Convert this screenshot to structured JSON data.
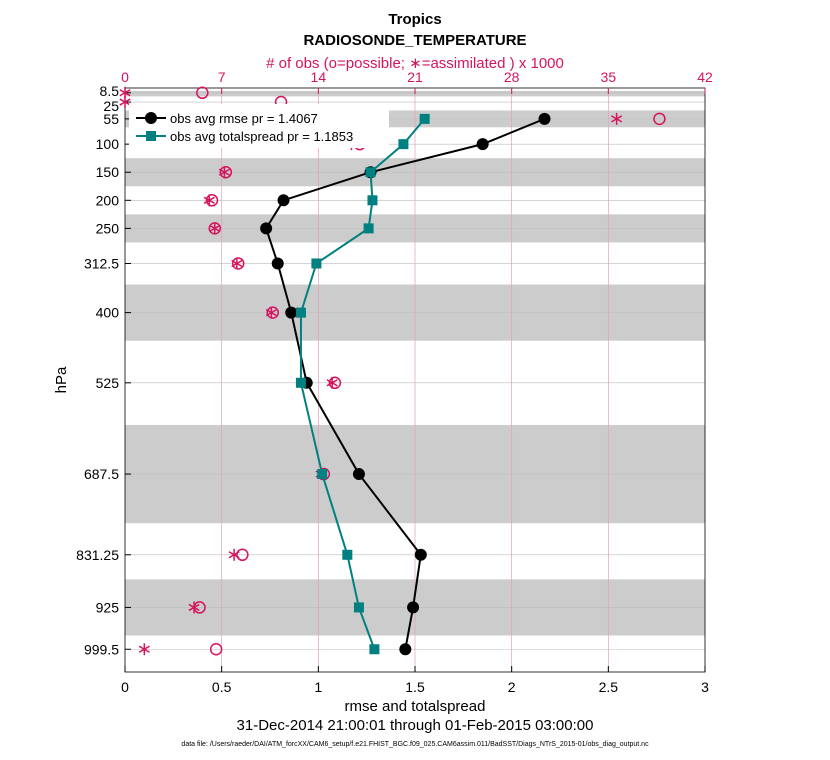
{
  "chart_data": {
    "type": "line",
    "title": "Tropics",
    "subtitle": "RADIOSONDE_TEMPERATURE",
    "top_axis_label": "# of obs (o=possible; ∗=assimilated ) x 1000",
    "xlabel": "rmse and totalspread",
    "ylabel": "hPa",
    "date_range": "31-Dec-2014 21:00:01 through 01-Feb-2015 03:00:00",
    "footnote": "data file: /Users/raeder/DAI/ATM_forcXX/CAM6_setup/f.e21.FHIST_BGC.f09_025.CAM6assim.011/BadSST/Diags_NTrS_2015-01/obs_diag_output.nc",
    "xlim": [
      0,
      3
    ],
    "x_ticks": [
      "0",
      "0.5",
      "1",
      "1.5",
      "2",
      "2.5",
      "3"
    ],
    "x_tick_values": [
      0,
      0.5,
      1,
      1.5,
      2,
      2.5,
      3
    ],
    "top_xlim": [
      0,
      42
    ],
    "top_ticks": [
      "0",
      "7",
      "14",
      "21",
      "28",
      "35",
      "42"
    ],
    "top_tick_values": [
      0,
      7,
      14,
      21,
      28,
      35,
      42
    ],
    "levels": [
      8.5,
      25,
      55,
      100,
      150,
      200,
      250,
      312.5,
      400,
      525,
      687.5,
      831.25,
      925,
      999.5
    ],
    "level_labels": [
      "8.5",
      "25",
      "55",
      "100",
      "150",
      "200",
      "250",
      "312.5",
      "400",
      "525",
      "687.5",
      "831.25",
      "925",
      "999.5"
    ],
    "shaded_bands_hPa": [
      [
        5,
        15
      ],
      [
        40,
        70
      ],
      [
        125,
        175
      ],
      [
        225,
        275
      ],
      [
        350,
        450
      ],
      [
        600,
        775
      ],
      [
        875,
        975
      ]
    ],
    "series": [
      {
        "name": "obs avg rmse pr = 1.4067",
        "color": "#000000",
        "marker": "circle",
        "levels": [
          55,
          100,
          150,
          200,
          250,
          312.5,
          400,
          525,
          687.5,
          831.25,
          925,
          999.5
        ],
        "values": [
          2.17,
          1.85,
          1.27,
          0.82,
          0.73,
          0.79,
          0.86,
          0.94,
          1.21,
          1.53,
          1.49,
          1.45
        ]
      },
      {
        "name": "obs avg totalspread pr = 1.1853",
        "color": "#008080",
        "marker": "square",
        "levels": [
          55,
          100,
          150,
          200,
          250,
          312.5,
          400,
          525,
          687.5,
          831.25,
          925,
          999.5
        ],
        "values": [
          1.55,
          1.44,
          1.27,
          1.28,
          1.26,
          0.99,
          0.91,
          0.91,
          1.02,
          1.15,
          1.21,
          1.29
        ]
      }
    ],
    "obs_possible": {
      "color": "#d6145e",
      "marker": "o",
      "levels": [
        8.5,
        25,
        55,
        100,
        150,
        200,
        250,
        312.5,
        400,
        525,
        687.5,
        831.25,
        925,
        999.5
      ],
      "values": [
        5.6,
        11.3,
        38.7,
        17.0,
        7.3,
        6.3,
        6.5,
        8.2,
        10.7,
        15.2,
        14.4,
        8.5,
        5.4,
        6.6
      ]
    },
    "obs_assimilated": {
      "color": "#d6145e",
      "marker": "*",
      "levels": [
        8.5,
        25,
        55,
        100,
        150,
        200,
        250,
        312.5,
        400,
        525,
        687.5,
        831.25,
        925,
        999.5
      ],
      "values": [
        0.0,
        0.0,
        35.6,
        16.4,
        7.2,
        6.1,
        6.5,
        8.1,
        10.6,
        15.0,
        14.2,
        7.9,
        5.0,
        1.4
      ]
    },
    "legend_position": "top-left",
    "grid": true
  }
}
